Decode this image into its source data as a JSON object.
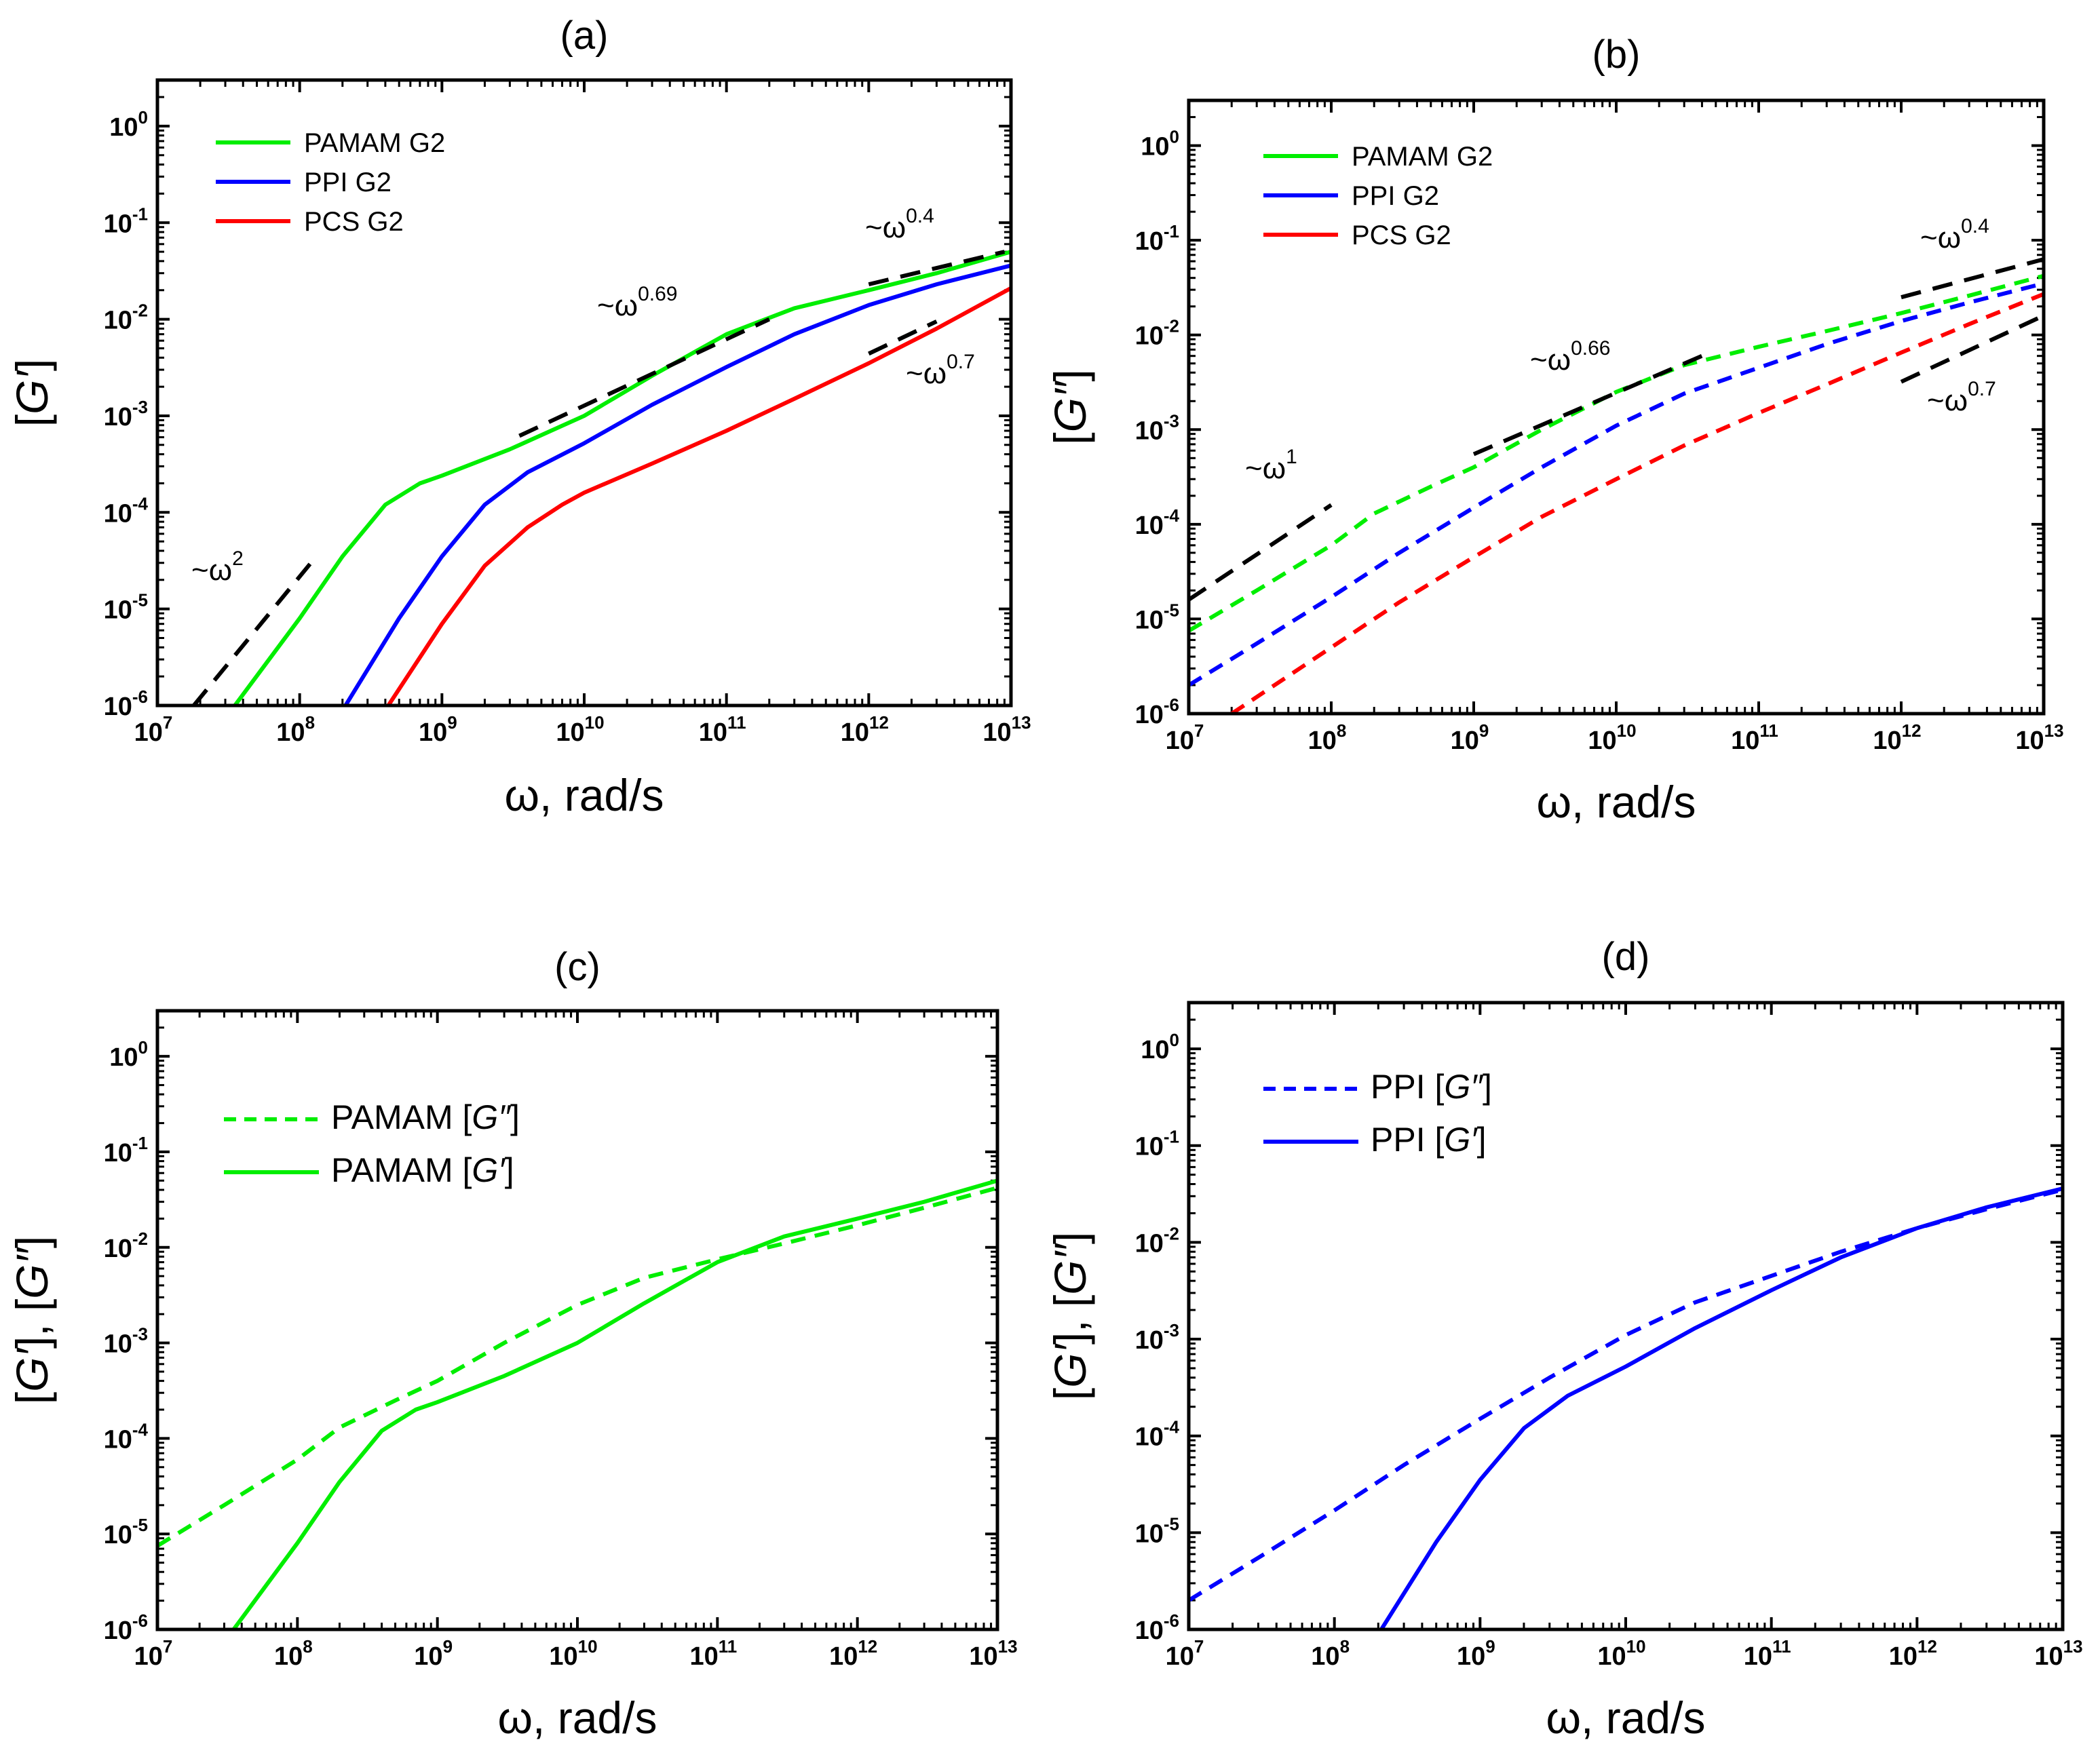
{
  "chart_data": [
    {
      "panel_title": "(a)",
      "type": "line",
      "xscale": "log",
      "yscale": "log",
      "xlim": [
        10000000.0,
        10000000000000.0
      ],
      "ylim": [
        1e-06,
        3
      ],
      "xlabel": "ω, rad/s",
      "ylabel": "[G′]",
      "legend": {
        "position": "top-left",
        "items": [
          {
            "name": "PAMAM G2",
            "color": "#00ee00",
            "dash": "solid"
          },
          {
            "name": "PPI G2",
            "color": "#0000ff",
            "dash": "solid"
          },
          {
            "name": "PCS G2",
            "color": "#ff0000",
            "dash": "solid"
          }
        ]
      },
      "series": [
        {
          "name": "PAMAM G2",
          "color": "#00ee00",
          "dash": "solid",
          "x": [
            35000000.0,
            100000000.0,
            200000000.0,
            400000000.0,
            700000000.0,
            1000000000.0,
            3000000000.0,
            10000000000.0,
            30000000000.0,
            100000000000.0,
            300000000000.0,
            1000000000000.0,
            3000000000000.0,
            10000000000000.0
          ],
          "y": [
            1e-06,
            8e-06,
            3.5e-05,
            0.00012,
            0.0002,
            0.00024,
            0.00045,
            0.001,
            0.0026,
            0.007,
            0.013,
            0.02,
            0.03,
            0.05
          ]
        },
        {
          "name": "PPI G2",
          "color": "#0000ff",
          "dash": "solid",
          "x": [
            210000000.0,
            500000000.0,
            1000000000.0,
            2000000000.0,
            4000000000.0,
            10000000000.0,
            30000000000.0,
            100000000000.0,
            300000000000.0,
            1000000000000.0,
            3000000000000.0,
            10000000000000.0
          ],
          "y": [
            1e-06,
            8e-06,
            3.5e-05,
            0.00012,
            0.00026,
            0.00052,
            0.0013,
            0.0032,
            0.007,
            0.014,
            0.023,
            0.036
          ]
        },
        {
          "name": "PCS G2",
          "color": "#ff0000",
          "dash": "solid",
          "x": [
            420000000.0,
            1000000000.0,
            2000000000.0,
            4000000000.0,
            7000000000.0,
            10000000000.0,
            30000000000.0,
            100000000000.0,
            300000000000.0,
            1000000000000.0,
            3000000000000.0,
            10000000000000.0
          ],
          "y": [
            1e-06,
            7e-06,
            2.8e-05,
            7e-05,
            0.00012,
            0.00016,
            0.00032,
            0.0007,
            0.0015,
            0.0035,
            0.008,
            0.021
          ]
        }
      ],
      "guides": [
        {
          "label_base": "~ω",
          "label_exp": "2",
          "x": [
            18000000.0,
            120000000.0
          ],
          "y": [
            1e-06,
            3e-05
          ]
        },
        {
          "label_base": "~ω",
          "label_exp": "0.69",
          "x": [
            3500000000.0,
            200000000000.0
          ],
          "y": [
            0.00062,
            0.01
          ]
        },
        {
          "label_base": "~ω",
          "label_exp": "0.4",
          "x": [
            1000000000000.0,
            9000000000000.0
          ],
          "y": [
            0.023,
            0.05
          ]
        },
        {
          "label_base": "~ω",
          "label_exp": "0.7",
          "x": [
            1000000000000.0,
            3000000000000.0
          ],
          "y": [
            0.0044,
            0.0095
          ]
        }
      ]
    },
    {
      "panel_title": "(b)",
      "type": "line",
      "xscale": "log",
      "yscale": "log",
      "xlim": [
        10000000.0,
        10000000000000.0
      ],
      "ylim": [
        1e-06,
        3
      ],
      "xlabel": "ω, rad/s",
      "ylabel": "[G″]",
      "legend": {
        "position": "top-left",
        "items": [
          {
            "name": "PAMAM G2",
            "color": "#00ee00",
            "dash": "solid"
          },
          {
            "name": "PPI G2",
            "color": "#0000ff",
            "dash": "solid"
          },
          {
            "name": "PCS G2",
            "color": "#ff0000",
            "dash": "solid"
          }
        ]
      },
      "series": [
        {
          "name": "PAMAM G2",
          "color": "#00ee00",
          "dash": "dashed",
          "x": [
            10000000.0,
            30000000.0,
            100000000.0,
            200000000.0,
            500000000.0,
            1000000000.0,
            3000000000.0,
            10000000000.0,
            30000000000.0,
            100000000000.0,
            300000000000.0,
            1000000000000.0,
            3000000000000.0,
            10000000000000.0
          ],
          "y": [
            7.5e-06,
            2e-05,
            6e-05,
            0.00013,
            0.00025,
            0.0004,
            0.001,
            0.0025,
            0.0048,
            0.0075,
            0.011,
            0.017,
            0.026,
            0.042
          ]
        },
        {
          "name": "PPI G2",
          "color": "#0000ff",
          "dash": "dashed",
          "x": [
            10000000.0,
            30000000.0,
            100000000.0,
            300000000.0,
            1000000000.0,
            3000000000.0,
            10000000000.0,
            30000000000.0,
            100000000000.0,
            300000000000.0,
            1000000000000.0,
            3000000000000.0,
            10000000000000.0
          ],
          "y": [
            2e-06,
            5.5e-06,
            1.7e-05,
            5e-05,
            0.00015,
            0.0004,
            0.0011,
            0.0024,
            0.0045,
            0.008,
            0.014,
            0.022,
            0.035
          ]
        },
        {
          "name": "PCS G2",
          "color": "#ff0000",
          "dash": "dashed",
          "x": [
            20000000.0,
            50000000.0,
            100000000.0,
            300000000.0,
            1000000000.0,
            3000000000.0,
            10000000000.0,
            30000000000.0,
            100000000000.0,
            300000000000.0,
            1000000000000.0,
            3000000000000.0,
            10000000000000.0
          ],
          "y": [
            1e-06,
            2.5e-06,
            5e-06,
            1.5e-05,
            4.5e-05,
            0.00012,
            0.0003,
            0.00068,
            0.0015,
            0.003,
            0.0065,
            0.013,
            0.027
          ]
        }
      ],
      "guides": [
        {
          "label_base": "~ω",
          "label_exp": "1",
          "x": [
            10000000.0,
            100000000.0
          ],
          "y": [
            1.6e-05,
            0.00016
          ]
        },
        {
          "label_base": "~ω",
          "label_exp": "0.66",
          "x": [
            1000000000.0,
            40000000000.0
          ],
          "y": [
            0.00055,
            0.006
          ]
        },
        {
          "label_base": "~ω",
          "label_exp": "0.4",
          "x": [
            1000000000000.0,
            10000000000000.0
          ],
          "y": [
            0.025,
            0.063
          ]
        },
        {
          "label_base": "~ω",
          "label_exp": "0.7",
          "x": [
            1000000000000.0,
            10000000000000.0
          ],
          "y": [
            0.0032,
            0.016
          ]
        }
      ]
    },
    {
      "panel_title": "(c)",
      "type": "line",
      "xscale": "log",
      "yscale": "log",
      "xlim": [
        10000000.0,
        10000000000000.0
      ],
      "ylim": [
        1e-06,
        3
      ],
      "xlabel": "ω, rad/s",
      "ylabel": "[G′], [G″]",
      "legend": {
        "position": "top-left",
        "items": [
          {
            "name_prefix": "PAMAM [",
            "name_italic": "G″",
            "name_suffix": "]",
            "color": "#00ee00",
            "dash": "dashed"
          },
          {
            "name_prefix": "PAMAM [",
            "name_italic": "G′",
            "name_suffix": "]",
            "color": "#00ee00",
            "dash": "solid"
          }
        ]
      },
      "series": [
        {
          "name": "PAMAM [G″]",
          "color": "#00ee00",
          "dash": "dashed",
          "x": [
            10000000.0,
            30000000.0,
            100000000.0,
            200000000.0,
            500000000.0,
            1000000000.0,
            3000000000.0,
            10000000000.0,
            30000000000.0,
            100000000000.0,
            300000000000.0,
            1000000000000.0,
            3000000000000.0,
            10000000000000.0
          ],
          "y": [
            7.5e-06,
            2e-05,
            6e-05,
            0.00013,
            0.00025,
            0.0004,
            0.001,
            0.0025,
            0.0048,
            0.0075,
            0.011,
            0.017,
            0.026,
            0.042
          ]
        },
        {
          "name": "PAMAM [G′]",
          "color": "#00ee00",
          "dash": "solid",
          "x": [
            35000000.0,
            100000000.0,
            200000000.0,
            400000000.0,
            700000000.0,
            1000000000.0,
            3000000000.0,
            10000000000.0,
            30000000000.0,
            100000000000.0,
            300000000000.0,
            1000000000000.0,
            3000000000000.0,
            10000000000000.0
          ],
          "y": [
            1e-06,
            8e-06,
            3.5e-05,
            0.00012,
            0.0002,
            0.00024,
            0.00045,
            0.001,
            0.0026,
            0.007,
            0.013,
            0.02,
            0.03,
            0.05
          ]
        }
      ]
    },
    {
      "panel_title": "(d)",
      "type": "line",
      "xscale": "log",
      "yscale": "log",
      "xlim": [
        10000000.0,
        10000000000000.0
      ],
      "ylim": [
        1e-06,
        3
      ],
      "xlabel": "ω, rad/s",
      "ylabel": "[G′], [G″]",
      "legend": {
        "position": "top-left",
        "items": [
          {
            "name_prefix": "PPI [",
            "name_italic": "G″",
            "name_suffix": "]",
            "color": "#0000ff",
            "dash": "dashed"
          },
          {
            "name_prefix": "PPI [",
            "name_italic": "G′",
            "name_suffix": "]",
            "color": "#0000ff",
            "dash": "solid"
          }
        ]
      },
      "series": [
        {
          "name": "PPI [G″]",
          "color": "#0000ff",
          "dash": "dashed",
          "x": [
            10000000.0,
            30000000.0,
            100000000.0,
            300000000.0,
            1000000000.0,
            3000000000.0,
            10000000000.0,
            30000000000.0,
            100000000000.0,
            300000000000.0,
            1000000000000.0,
            3000000000000.0,
            10000000000000.0
          ],
          "y": [
            2e-06,
            5.5e-06,
            1.7e-05,
            5e-05,
            0.00015,
            0.0004,
            0.0011,
            0.0024,
            0.0045,
            0.008,
            0.014,
            0.022,
            0.035
          ]
        },
        {
          "name": "PPI [G′]",
          "color": "#0000ff",
          "dash": "solid",
          "x": [
            210000000.0,
            500000000.0,
            1000000000.0,
            2000000000.0,
            4000000000.0,
            10000000000.0,
            30000000000.0,
            100000000000.0,
            300000000000.0,
            1000000000000.0,
            3000000000000.0,
            10000000000000.0
          ],
          "y": [
            1e-06,
            8e-06,
            3.5e-05,
            0.00012,
            0.00026,
            0.00052,
            0.0013,
            0.0032,
            0.007,
            0.014,
            0.023,
            0.036
          ]
        }
      ]
    }
  ]
}
